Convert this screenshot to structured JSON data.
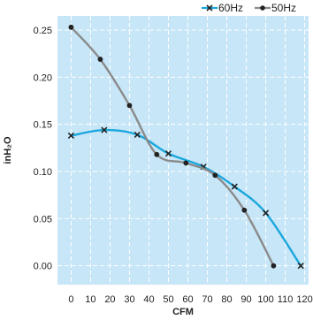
{
  "chart_data": {
    "type": "line",
    "xlabel": "CFM",
    "ylabel": "inH₂O",
    "xlim": [
      -7,
      122
    ],
    "ylim": [
      -0.02,
      0.265
    ],
    "xticks": [
      "0",
      "10",
      "20",
      "30",
      "40",
      "50",
      "60",
      "70",
      "80",
      "90",
      "100",
      "110",
      "120"
    ],
    "yticks": [
      "0.00",
      "0.05",
      "0.10",
      "0.15",
      "0.20",
      "0.25"
    ],
    "grid": true,
    "legend_position": "top-right",
    "background": "#c7e6f7",
    "series": [
      {
        "name": "60Hz",
        "color": "#1aa7dd",
        "marker": "x",
        "x": [
          0,
          17,
          34,
          50,
          68,
          84,
          100,
          118
        ],
        "y": [
          0.138,
          0.144,
          0.139,
          0.119,
          0.105,
          0.084,
          0.056,
          0.0
        ]
      },
      {
        "name": "50Hz",
        "color": "#8a8a8a",
        "marker": "dot",
        "x": [
          0,
          15,
          30,
          44,
          59,
          74,
          89,
          104
        ],
        "y": [
          0.253,
          0.219,
          0.17,
          0.118,
          0.109,
          0.096,
          0.059,
          0.0
        ]
      }
    ]
  }
}
